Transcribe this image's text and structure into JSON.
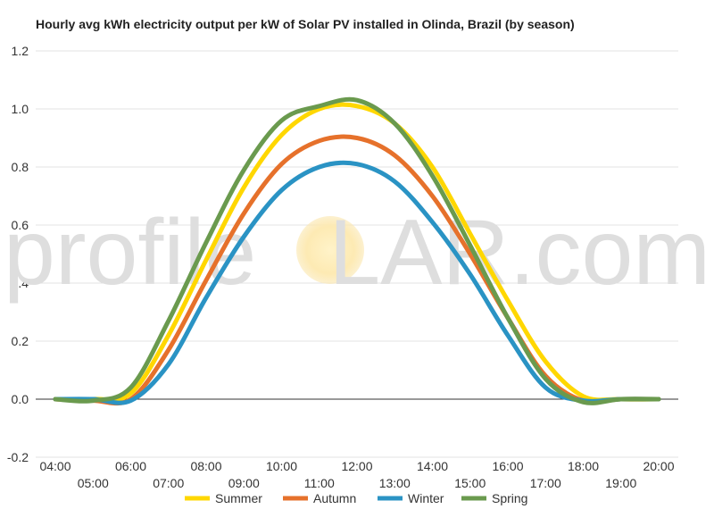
{
  "watermark": {
    "left": "profile",
    "right": "LAR.com"
  },
  "chart_data": {
    "type": "line",
    "title": "Hourly avg kWh electricity output per kW of Solar PV installed in Olinda, Brazil (by season)",
    "xlabel": "",
    "ylabel": "",
    "ylim": [
      -0.2,
      1.2
    ],
    "yticks": [
      -0.2,
      0.0,
      0.2,
      0.4,
      0.6,
      0.8,
      1.0,
      1.2
    ],
    "ytick_labels": [
      "-0.2",
      "0.0",
      "0.2",
      "0.4",
      "0.6",
      "0.8",
      "1.0",
      "1.2"
    ],
    "x": [
      "04:00",
      "05:00",
      "06:00",
      "07:00",
      "08:00",
      "09:00",
      "10:00",
      "11:00",
      "12:00",
      "13:00",
      "14:00",
      "15:00",
      "16:00",
      "17:00",
      "18:00",
      "19:00",
      "20:00"
    ],
    "grid": true,
    "legend_position": "bottom",
    "series": [
      {
        "name": "Summer",
        "color": "#FFD700",
        "values": [
          0.0,
          0.0,
          0.02,
          0.22,
          0.48,
          0.73,
          0.91,
          1.0,
          1.01,
          0.95,
          0.8,
          0.57,
          0.34,
          0.13,
          0.01,
          0.0,
          0.0
        ]
      },
      {
        "name": "Autumn",
        "color": "#E6712B",
        "values": [
          0.0,
          -0.005,
          0.0,
          0.17,
          0.41,
          0.64,
          0.81,
          0.89,
          0.9,
          0.84,
          0.7,
          0.5,
          0.28,
          0.08,
          -0.005,
          0.0,
          0.0
        ]
      },
      {
        "name": "Winter",
        "color": "#2A93C4",
        "values": [
          0.0,
          0.0,
          -0.005,
          0.12,
          0.35,
          0.56,
          0.72,
          0.8,
          0.81,
          0.75,
          0.61,
          0.43,
          0.22,
          0.04,
          -0.005,
          0.0,
          0.0
        ]
      },
      {
        "name": "Spring",
        "color": "#6A9A4E",
        "values": [
          0.0,
          -0.005,
          0.04,
          0.27,
          0.54,
          0.79,
          0.96,
          1.01,
          1.03,
          0.95,
          0.77,
          0.53,
          0.28,
          0.07,
          -0.01,
          0.0,
          0.0
        ]
      }
    ]
  }
}
